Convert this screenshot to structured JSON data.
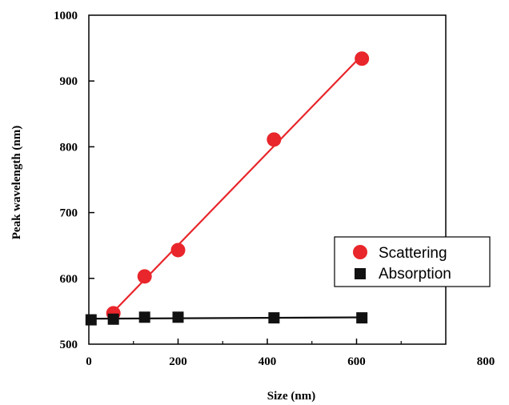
{
  "chart_data": {
    "type": "scatter",
    "xlabel": "Size (nm)",
    "ylabel": "Peak wavelength (nm)",
    "xlim": [
      0,
      800
    ],
    "ylim": [
      500,
      1000
    ],
    "xticks": [
      0,
      200,
      400,
      600,
      800
    ],
    "yticks": [
      500,
      600,
      700,
      800,
      900,
      1000
    ],
    "xtick_labels": [
      "0",
      "200",
      "400",
      "600",
      "800"
    ],
    "ytick_labels": [
      "500",
      "600",
      "700",
      "800",
      "900",
      "1000"
    ],
    "grid": false,
    "legend_position": "center-right",
    "series": [
      {
        "name": "Scattering",
        "marker": "circle",
        "color": "#e8262b",
        "fit_line": true,
        "points": [
          [
            55,
            547
          ],
          [
            125,
            603
          ],
          [
            200,
            643
          ],
          [
            415,
            811
          ],
          [
            612,
            934
          ]
        ]
      },
      {
        "name": "Absorption",
        "marker": "square",
        "color": "#111111",
        "fit_line": true,
        "points": [
          [
            5,
            537
          ],
          [
            55,
            538
          ],
          [
            125,
            541
          ],
          [
            200,
            541
          ],
          [
            415,
            540
          ],
          [
            612,
            540
          ]
        ]
      }
    ]
  }
}
